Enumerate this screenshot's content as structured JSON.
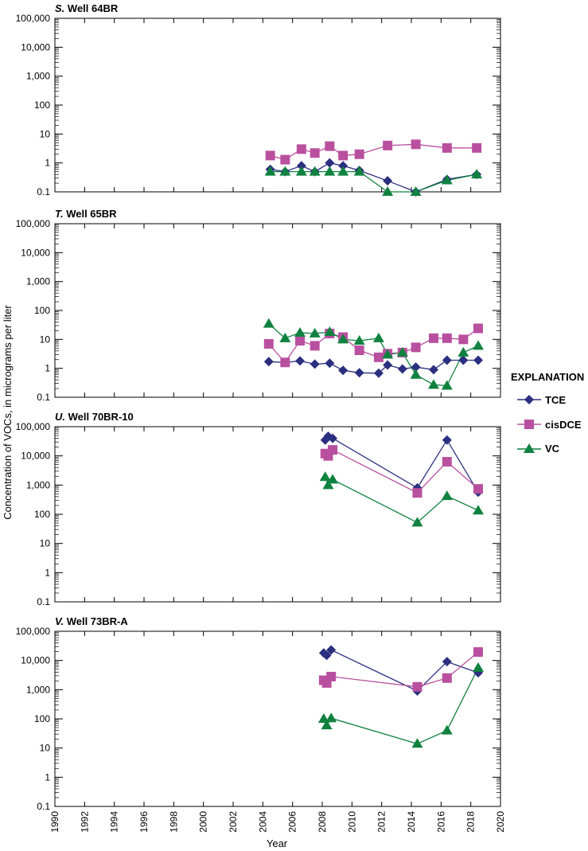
{
  "chart_data": {
    "type": "line",
    "xlabel": "Year",
    "ylabel": "Concentration of VOCs, in micrograms per liter",
    "yscale": "log",
    "xlim": [
      1990,
      2020
    ],
    "ylim": [
      0.1,
      100000
    ],
    "x_ticks": [
      "1990",
      "1992",
      "1994",
      "1996",
      "1998",
      "2000",
      "2002",
      "2004",
      "2006",
      "2008",
      "2010",
      "2012",
      "2014",
      "2016",
      "2018",
      "2020"
    ],
    "y_ticks": [
      "0.1",
      "1",
      "10",
      "100",
      "1,000",
      "10,000",
      "100,000"
    ],
    "legend": {
      "title": "EXPLANATION",
      "placement": "right",
      "entries": [
        "TCE",
        "cisDCE",
        "VC"
      ]
    },
    "colors": {
      "TCE": "#2b2f7f",
      "cisDCE": "#b9509f",
      "VC": "#10823f"
    },
    "panels": [
      {
        "letter": "S.",
        "title": "Well 64BR",
        "series": [
          {
            "name": "TCE",
            "x": [
              2004.5,
              2005.5,
              2006.6,
              2007.5,
              2008.5,
              2009.4,
              2010.5,
              2012.4,
              2014.3,
              2016.4,
              2018.4
            ],
            "y": [
              0.6,
              0.5,
              0.8,
              0.5,
              1.0,
              0.8,
              0.55,
              0.24,
              0.1,
              0.27,
              0.4
            ]
          },
          {
            "name": "cisDCE",
            "x": [
              2004.5,
              2005.5,
              2006.6,
              2007.5,
              2008.5,
              2009.4,
              2010.5,
              2012.4,
              2014.3,
              2016.4,
              2018.4
            ],
            "y": [
              1.8,
              1.3,
              3.0,
              2.2,
              3.8,
              1.8,
              2.0,
              4.0,
              4.4,
              3.3,
              3.3
            ]
          },
          {
            "name": "VC",
            "x": [
              2004.5,
              2005.5,
              2006.6,
              2007.5,
              2008.5,
              2009.4,
              2010.5,
              2012.4,
              2014.3,
              2016.4,
              2018.4
            ],
            "y": [
              0.5,
              0.5,
              0.5,
              0.5,
              0.5,
              0.5,
              0.5,
              0.1,
              0.1,
              0.25,
              0.4
            ]
          }
        ]
      },
      {
        "letter": "T.",
        "title": "Well 65BR",
        "series": [
          {
            "name": "TCE",
            "x": [
              2004.4,
              2005.5,
              2006.5,
              2007.5,
              2008.5,
              2009.4,
              2010.5,
              2011.8,
              2012.4,
              2013.4,
              2014.3,
              2015.5,
              2016.4,
              2017.5,
              2018.5
            ],
            "y": [
              1.7,
              1.6,
              1.8,
              1.4,
              1.5,
              0.85,
              0.7,
              0.68,
              1.3,
              0.95,
              1.1,
              0.9,
              1.9,
              1.9,
              1.9
            ]
          },
          {
            "name": "cisDCE",
            "x": [
              2004.4,
              2005.5,
              2006.5,
              2007.5,
              2008.5,
              2009.4,
              2010.5,
              2011.8,
              2012.4,
              2013.4,
              2014.3,
              2015.5,
              2016.4,
              2017.5,
              2018.5
            ],
            "y": [
              7,
              1.6,
              9,
              6,
              16,
              12,
              4.2,
              2.4,
              3.2,
              3.5,
              5.3,
              11,
              11,
              10,
              24
            ]
          },
          {
            "name": "VC",
            "x": [
              2004.4,
              2005.5,
              2006.5,
              2007.5,
              2008.5,
              2009.4,
              2010.5,
              2011.8,
              2012.4,
              2013.4,
              2014.3,
              2015.5,
              2016.4,
              2017.5,
              2018.5
            ],
            "y": [
              35,
              11,
              17,
              16,
              18,
              10,
              9,
              11,
              3,
              3.5,
              0.6,
              0.27,
              0.25,
              3.5,
              6
            ]
          }
        ]
      },
      {
        "letter": "U.",
        "title": "Well 70BR-10",
        "series": [
          {
            "name": "TCE",
            "x": [
              2008.2,
              2008.4,
              2008.7,
              2014.4,
              2016.4,
              2018.5
            ],
            "y": [
              35000,
              47000,
              40000,
              800,
              35000,
              570
            ]
          },
          {
            "name": "cisDCE",
            "x": [
              2008.2,
              2008.4,
              2008.7,
              2014.4,
              2016.4,
              2018.5
            ],
            "y": [
              12000,
              10000,
              16000,
              540,
              6300,
              740
            ]
          },
          {
            "name": "VC",
            "x": [
              2008.2,
              2008.4,
              2008.7,
              2014.4,
              2016.4,
              2018.5
            ],
            "y": [
              1900,
              1000,
              1550,
              52,
              420,
              135
            ]
          }
        ]
      },
      {
        "letter": "V.",
        "title": "Well 73BR-A",
        "series": [
          {
            "name": "TCE",
            "x": [
              2008.1,
              2008.3,
              2008.6,
              2014.4,
              2016.4,
              2018.5
            ],
            "y": [
              18000,
              15000,
              23000,
              900,
              9100,
              3800
            ]
          },
          {
            "name": "cisDCE",
            "x": [
              2008.1,
              2008.3,
              2008.6,
              2014.4,
              2016.4,
              2018.5
            ],
            "y": [
              2100,
              1700,
              2800,
              1250,
              2500,
              19500
            ]
          },
          {
            "name": "VC",
            "x": [
              2008.1,
              2008.3,
              2008.6,
              2014.4,
              2016.4,
              2018.5
            ],
            "y": [
              100,
              60,
              105,
              14,
              40,
              5600
            ]
          }
        ]
      }
    ]
  }
}
